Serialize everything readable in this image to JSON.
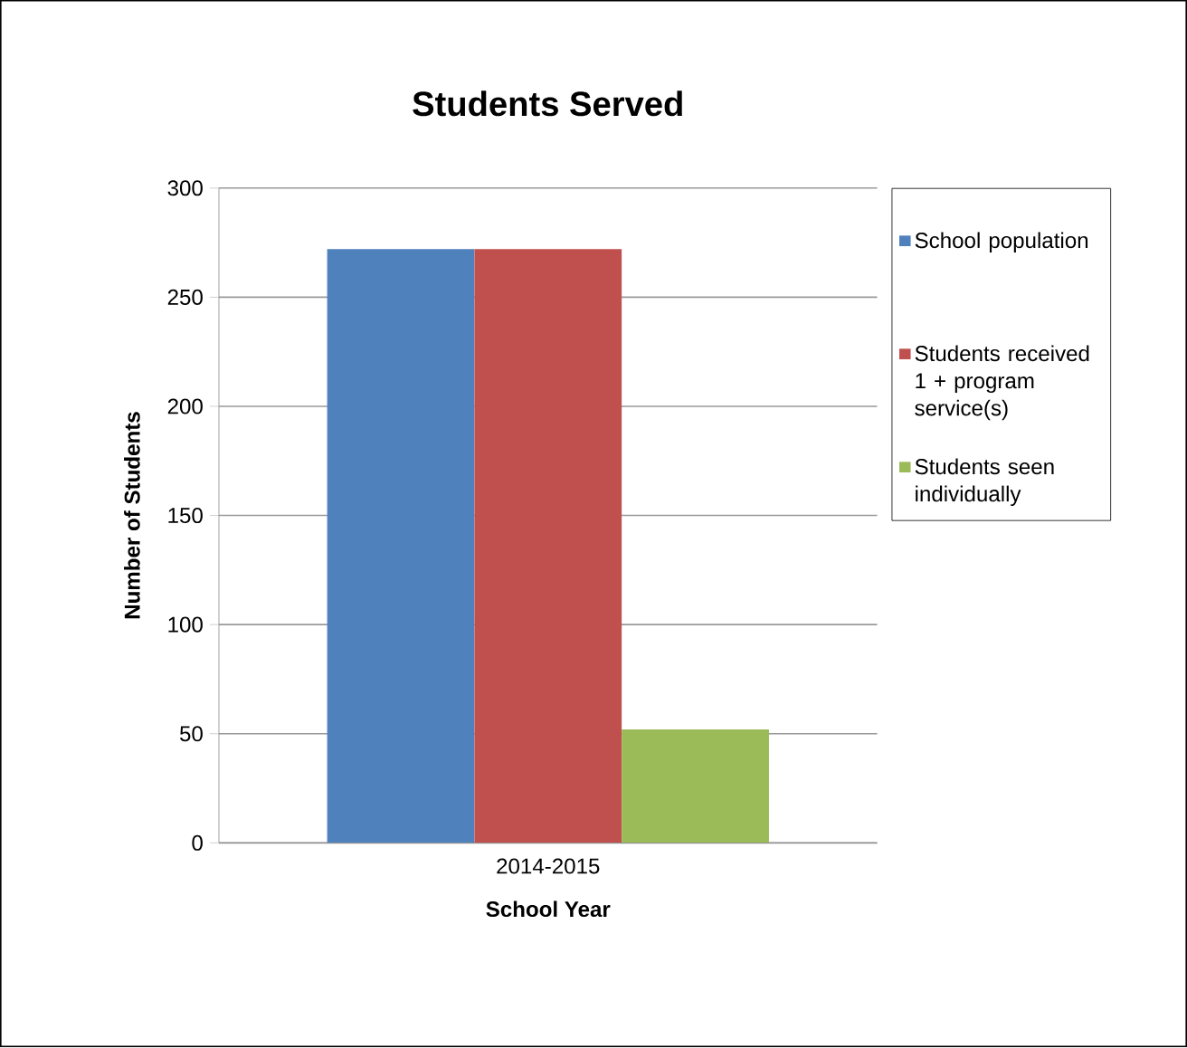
{
  "chart_data": {
    "type": "bar",
    "title": "Students Served",
    "xlabel": "School Year",
    "ylabel": "Number of Students",
    "categories": [
      "2014-2015"
    ],
    "series": [
      {
        "name": "School population",
        "color": "#4f81bd",
        "values": [
          272
        ]
      },
      {
        "name": "Students received 1 + program service(s)",
        "color": "#c0504d",
        "values": [
          272
        ]
      },
      {
        "name": "Students seen individually",
        "color": "#9bbb59",
        "values": [
          52
        ]
      }
    ],
    "ylim": [
      0,
      300
    ],
    "yticks": [
      0,
      50,
      100,
      150,
      200,
      250,
      300
    ],
    "grid": "y",
    "legend": "right"
  }
}
